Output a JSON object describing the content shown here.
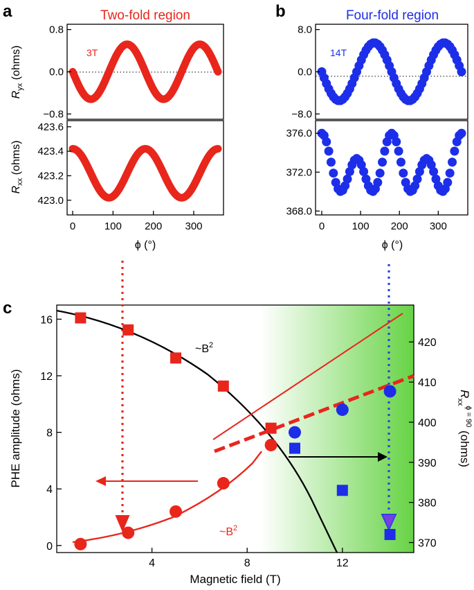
{
  "chart_data": [
    {
      "panel": "a",
      "type": "line",
      "title": "Two-fold region",
      "field_label": "3T",
      "x": [
        0,
        15,
        30,
        45,
        60,
        75,
        90,
        105,
        120,
        135,
        150,
        165,
        180,
        195,
        210,
        225,
        240,
        255,
        270,
        285,
        300,
        315,
        330,
        345,
        360
      ],
      "top": {
        "ylabel_main": "R",
        "ylabel_sub": "yx",
        "ylabel_unit": " (ohms)",
        "ylim": [
          -0.9,
          0.9
        ],
        "ticks": [
          0.8,
          0.0,
          -0.8
        ],
        "tick_labels": [
          "0.8",
          "0.0",
          "−0.8"
        ],
        "zero_line": 0
      },
      "bottom": {
        "ylabel_main": "R",
        "ylabel_sub": "xx",
        "ylabel_unit": " (ohms)",
        "ylim": [
          422.88,
          423.65
        ],
        "ticks": [
          423.6,
          423.4,
          423.2,
          423.0
        ],
        "tick_labels": [
          "423.6",
          "423.4",
          "423.2",
          "423.0"
        ],
        "xticks": [
          0,
          100,
          200,
          300
        ],
        "xtick_labels": [
          "0",
          "100",
          "200",
          "300"
        ],
        "xlabel": "ϕ (°)"
      }
    },
    {
      "panel": "b",
      "type": "line",
      "title": "Four-fold region",
      "field_label": "14T",
      "x": [
        0,
        15,
        30,
        45,
        60,
        75,
        90,
        105,
        120,
        135,
        150,
        165,
        180,
        195,
        210,
        225,
        240,
        255,
        270,
        285,
        300,
        315,
        330,
        345,
        360
      ],
      "top": {
        "ylim": [
          -9.0,
          9.0
        ],
        "ticks": [
          8.0,
          0.0,
          -8.0
        ],
        "tick_labels": [
          "8.0",
          "0.0",
          "−8.0"
        ],
        "zero_line": 0
      },
      "bottom": {
        "ylim": [
          367.6,
          377.3
        ],
        "ticks": [
          376.0,
          372.0,
          368.0
        ],
        "tick_labels": [
          "376.0",
          "372.0",
          "368.0"
        ],
        "xticks": [
          0,
          100,
          200,
          300
        ],
        "xtick_labels": [
          "0",
          "100",
          "200",
          "300"
        ],
        "xlabel": "ϕ (°)"
      }
    },
    {
      "panel": "c",
      "type": "scatter",
      "xlabel": "Magnetic field (T)",
      "ylabel_left": "PHE amplitude (ohms)",
      "ylabel_right_main": "R",
      "ylabel_right_sub": "xx",
      "ylabel_right_sup": "ϕ = 90",
      "ylabel_right_unit": " (ohms)",
      "xlim": [
        0,
        15
      ],
      "ylim_left": [
        -0.5,
        17
      ],
      "ylim_right": [
        367.5,
        429.2
      ],
      "xticks": [
        4,
        8,
        12
      ],
      "xtick_labels": [
        "4",
        "8",
        "12"
      ],
      "yticks_left": [
        0,
        4,
        8,
        12,
        16
      ],
      "ytick_labels_left": [
        "0",
        "4",
        "8",
        "12",
        "16"
      ],
      "yticks_right": [
        370,
        380,
        390,
        400,
        410,
        420
      ],
      "ytick_labels_right": [
        "370",
        "380",
        "390",
        "400",
        "410",
        "420"
      ],
      "series": [
        {
          "name": "Red squares (Rxx, right axis)",
          "axis": "right",
          "marker": "square",
          "color": "#e8261c",
          "x": [
            1,
            3,
            5,
            7,
            9
          ],
          "y": [
            426,
            423,
            416,
            409,
            398.5
          ]
        },
        {
          "name": "Red circles (PHE, left axis)",
          "axis": "left",
          "marker": "circle",
          "color": "#e8261c",
          "x": [
            1,
            3,
            5,
            7,
            9
          ],
          "y": [
            0.1,
            0.9,
            2.4,
            4.4,
            7.1
          ]
        },
        {
          "name": "Blue circles (PHE, left axis)",
          "axis": "left",
          "marker": "circle",
          "color": "#1d2ee8",
          "x": [
            10,
            12,
            14
          ],
          "y": [
            8.0,
            9.6,
            10.9
          ]
        },
        {
          "name": "Blue squares (Rxx, right axis)",
          "axis": "right",
          "marker": "square",
          "color": "#1d2ee8",
          "x": [
            10,
            12,
            14
          ],
          "y": [
            393.5,
            383,
            372
          ]
        }
      ],
      "annotations": {
        "b2_upper": "~B",
        "b2_lower": "~B",
        "exponent": "2"
      },
      "shading": {
        "from_x": 9,
        "to_x": 15,
        "color": "#5ed13b"
      }
    }
  ],
  "panel_labels": {
    "a": "a",
    "b": "b",
    "c": "c"
  },
  "colors": {
    "red": "#e8261c",
    "blue": "#1d2ee8",
    "black": "#000000",
    "green": "#5ed13b"
  }
}
